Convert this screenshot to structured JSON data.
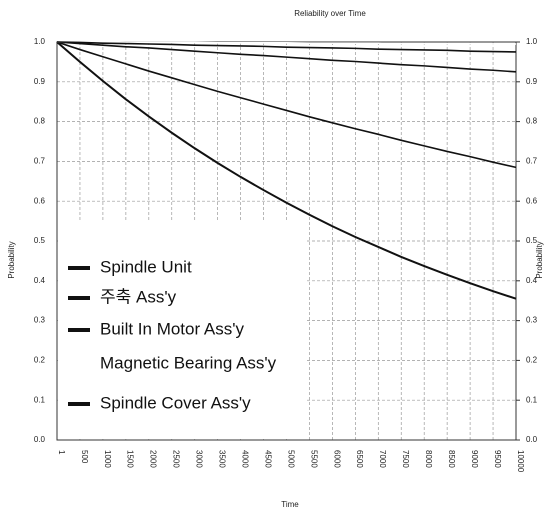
{
  "chart_data": {
    "type": "line",
    "title": "Reliability over Time",
    "xlabel": "Time",
    "ylabel": "Probability",
    "y2label": "Probability",
    "x": [
      0,
      500,
      1000,
      1500,
      2000,
      2500,
      3000,
      3500,
      4000,
      4500,
      5000,
      5500,
      6000,
      6500,
      7000,
      7500,
      8000,
      8500,
      9000,
      9500,
      10000
    ],
    "series": [
      {
        "name": "Spindle Unit",
        "color": "#111111",
        "values": [
          1.0,
          0.95,
          0.902,
          0.856,
          0.813,
          0.772,
          0.733,
          0.696,
          0.661,
          0.628,
          0.596,
          0.566,
          0.537,
          0.51,
          0.485,
          0.46,
          0.437,
          0.415,
          0.394,
          0.374,
          0.355
        ]
      },
      {
        "name": "주축 Ass'y",
        "color": "#111111",
        "values": [
          1.0,
          0.981,
          0.963,
          0.945,
          0.927,
          0.91,
          0.893,
          0.876,
          0.86,
          0.844,
          0.828,
          0.812,
          0.797,
          0.782,
          0.768,
          0.753,
          0.739,
          0.725,
          0.712,
          0.698,
          0.685
        ]
      },
      {
        "name": "Built In Motor Ass'y",
        "color": "#111111",
        "values": [
          1.0,
          0.996,
          0.992,
          0.988,
          0.985,
          0.981,
          0.977,
          0.973,
          0.969,
          0.966,
          0.962,
          0.958,
          0.954,
          0.951,
          0.947,
          0.943,
          0.94,
          0.936,
          0.932,
          0.929,
          0.925
        ]
      },
      {
        "name": "Magnetic Bearing Ass'y",
        "color": "#ffffff",
        "values": [
          1.0,
          1.0,
          1.0,
          0.999,
          0.999,
          0.999,
          0.999,
          0.998,
          0.998,
          0.998,
          0.998,
          0.997,
          0.997,
          0.997,
          0.997,
          0.996,
          0.996,
          0.996,
          0.996,
          0.995,
          0.995
        ]
      },
      {
        "name": "Spindle Cover  Ass'y",
        "color": "#111111",
        "values": [
          1.0,
          0.999,
          0.997,
          0.996,
          0.995,
          0.994,
          0.992,
          0.991,
          0.99,
          0.989,
          0.987,
          0.986,
          0.985,
          0.984,
          0.982,
          0.981,
          0.98,
          0.979,
          0.977,
          0.976,
          0.975
        ]
      }
    ],
    "xlim": [
      0,
      10000
    ],
    "xticks": [
      1,
      500,
      1000,
      1500,
      2000,
      2500,
      3000,
      3500,
      4000,
      4500,
      5000,
      5500,
      6000,
      6500,
      7000,
      7500,
      8000,
      8500,
      9000,
      9500,
      10000
    ],
    "ylim": [
      0,
      1
    ],
    "yticks": [
      {
        "value": 0,
        "label": "0.0"
      },
      {
        "value": 0.1,
        "label": "0.1"
      },
      {
        "value": 0.2,
        "label": "0.2"
      },
      {
        "value": 0.3,
        "label": "0.3"
      },
      {
        "value": 0.4,
        "label": "0.4"
      },
      {
        "value": 0.5,
        "label": "0.5"
      },
      {
        "value": 0.6,
        "label": "0.6"
      },
      {
        "value": 0.7,
        "label": "0.7"
      },
      {
        "value": 0.8,
        "label": "0.8"
      },
      {
        "value": 0.9,
        "label": "0.9"
      },
      {
        "value": 1,
        "label": "1.0"
      }
    ],
    "y2lim": [
      0,
      1
    ],
    "y2ticks": [
      {
        "value": 0,
        "label": "0.0"
      },
      {
        "value": 0.1,
        "label": "0.1"
      },
      {
        "value": 0.2,
        "label": "0.2"
      },
      {
        "value": 0.3,
        "label": "0.3"
      },
      {
        "value": 0.4,
        "label": "0.4"
      },
      {
        "value": 0.5,
        "label": "0.5"
      },
      {
        "value": 0.6,
        "label": "0.6"
      },
      {
        "value": 0.7,
        "label": "0.7"
      },
      {
        "value": 0.8,
        "label": "0.8"
      },
      {
        "value": 0.9,
        "label": "0.9"
      },
      {
        "value": 1,
        "label": "1.0"
      }
    ],
    "grid": true,
    "legend": "lower left"
  }
}
